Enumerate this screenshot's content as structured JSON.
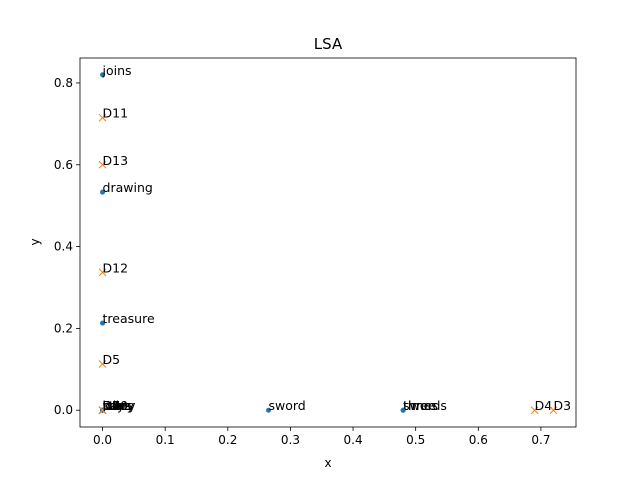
{
  "chart_data": {
    "type": "scatter",
    "title": "LSA",
    "xlabel": "x",
    "ylabel": "y",
    "xlim": [
      -0.036,
      0.756
    ],
    "ylim": [
      -0.041,
      0.861
    ],
    "xticks": [
      0.0,
      0.1,
      0.2,
      0.3,
      0.4,
      0.5,
      0.6,
      0.7
    ],
    "xtick_labels": [
      "0.0",
      "0.1",
      "0.2",
      "0.3",
      "0.4",
      "0.5",
      "0.6",
      "0.7"
    ],
    "yticks": [
      0.0,
      0.2,
      0.4,
      0.6,
      0.8
    ],
    "ytick_labels": [
      "0.0",
      "0.2",
      "0.4",
      "0.6",
      "0.8"
    ],
    "grid": false,
    "legend": null,
    "colors": {
      "terms": "#1f77b4",
      "documents": "#ff7f0e",
      "axes": "#000000"
    },
    "series": [
      {
        "marker": "dot",
        "points": [
          {
            "label": "joins",
            "x": 0.0,
            "y": 0.82
          },
          {
            "label": "drawing",
            "x": 0.0,
            "y": 0.533
          },
          {
            "label": "treasure",
            "x": 0.0,
            "y": 0.213
          },
          {
            "label": "sword",
            "x": 0.265,
            "y": 0.0
          },
          {
            "label": "three",
            "x": 0.48,
            "y": 0.0
          },
          {
            "label": "swords",
            "x": 0.48,
            "y": 0.0
          },
          {
            "label": "times",
            "x": 0.48,
            "y": 0.0
          },
          {
            "label": "rules",
            "x": 0.0,
            "y": 0.0
          },
          {
            "label": "story",
            "x": 0.0,
            "y": 0.0
          },
          {
            "label": "keys",
            "x": 0.0,
            "y": 0.0
          },
          {
            "label": "wins",
            "x": 0.0,
            "y": 0.0
          },
          {
            "label": "party",
            "x": 0.0,
            "y": 0.0
          }
        ]
      },
      {
        "marker": "x",
        "points": [
          {
            "label": "D11",
            "x": 0.0,
            "y": 0.715
          },
          {
            "label": "D13",
            "x": 0.0,
            "y": 0.6
          },
          {
            "label": "D12",
            "x": 0.0,
            "y": 0.337
          },
          {
            "label": "D5",
            "x": 0.0,
            "y": 0.113
          },
          {
            "label": "D4",
            "x": 0.69,
            "y": 0.0
          },
          {
            "label": "D3",
            "x": 0.72,
            "y": 0.0
          },
          {
            "label": "D1",
            "x": 0.0,
            "y": 0.0
          },
          {
            "label": "D2",
            "x": 0.0,
            "y": 0.0
          },
          {
            "label": "D6",
            "x": 0.0,
            "y": 0.0
          },
          {
            "label": "D7",
            "x": 0.0,
            "y": 0.0
          },
          {
            "label": "D8",
            "x": 0.0,
            "y": 0.0
          },
          {
            "label": "D9",
            "x": 0.0,
            "y": 0.0
          },
          {
            "label": "D10",
            "x": 0.0,
            "y": 0.0
          }
        ]
      }
    ]
  }
}
